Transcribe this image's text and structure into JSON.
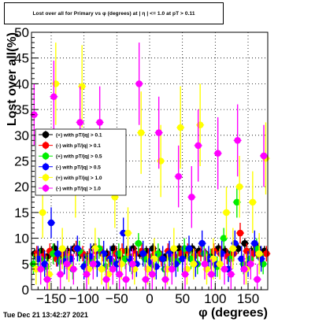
{
  "title": "Lost over all for Primary vs φ (degrees) at | η | <= 1.0 at pT > 0.11",
  "timestamp": "Tue Dec 21 13:42:27 2021",
  "chart_data": {
    "type": "scatter",
    "title": "Lost over all for Primary vs φ (degrees) at | η | <= 1.0 at pT > 0.11",
    "xlabel": "φ (degrees)",
    "ylabel": "Lost over all(%)",
    "xlim": [
      -180,
      180
    ],
    "ylim": [
      0,
      50
    ],
    "xticks": [
      -150,
      -100,
      -50,
      0,
      50,
      100,
      150
    ],
    "xtick_labels": [
      "−150",
      "−100",
      "−50",
      "0",
      "50",
      "100",
      "150"
    ],
    "yticks": [
      0,
      5,
      10,
      15,
      20,
      25,
      30,
      35,
      40,
      45,
      50
    ],
    "ytick_labels": [
      "0",
      "5",
      "10",
      "15",
      "20",
      "25",
      "30",
      "35",
      "40",
      "45",
      "50"
    ],
    "grid": true,
    "legend_position": "left-middle",
    "series": [
      {
        "name": "(+) with pT/|q| > 0.1",
        "color": "#000000",
        "x": [
          -175,
          -165,
          -155,
          -145,
          -135,
          -125,
          -115,
          -105,
          -95,
          -85,
          -75,
          -65,
          -55,
          -45,
          -35,
          -25,
          -15,
          -5,
          5,
          15,
          25,
          35,
          45,
          55,
          65,
          75,
          85,
          95,
          105,
          115,
          125,
          135,
          145,
          155,
          165,
          175
        ],
        "y": [
          7,
          7.5,
          6.5,
          8,
          7,
          7.5,
          8,
          7,
          6.5,
          8,
          7.5,
          7,
          8,
          6.5,
          7.5,
          8,
          7,
          7.5,
          8,
          7,
          6.5,
          7.5,
          8,
          7,
          8,
          7.5,
          7,
          6.5,
          8,
          7.5,
          7,
          8,
          9,
          7.5,
          8,
          7.5
        ],
        "err": [
          1,
          1,
          1,
          1,
          1,
          1,
          1,
          1,
          1,
          1,
          1,
          1,
          1,
          1,
          1,
          1,
          1,
          1,
          1,
          1,
          1,
          1,
          1,
          1,
          1,
          1,
          1,
          1,
          1,
          1,
          1,
          1,
          1,
          1,
          1,
          1
        ]
      },
      {
        "name": "(-) with pT/|q| > 0.1",
        "color": "#ff0000",
        "x": [
          -172,
          -162,
          -152,
          -142,
          -132,
          -122,
          -112,
          -102,
          -92,
          -82,
          -72,
          -62,
          -52,
          -42,
          -32,
          -22,
          -12,
          -2,
          8,
          18,
          28,
          38,
          48,
          58,
          68,
          78,
          88,
          98,
          108,
          118,
          128,
          138,
          148,
          158,
          168,
          178
        ],
        "y": [
          7,
          6.5,
          7.5,
          6,
          7,
          6.5,
          8,
          7,
          6.5,
          7.5,
          7,
          6,
          7,
          7.5,
          6.5,
          7,
          7.5,
          6.5,
          7,
          6,
          7.5,
          6.5,
          7,
          7.5,
          6.5,
          7,
          6,
          7.5,
          7,
          6.5,
          7,
          11,
          7.5,
          7,
          6.5,
          7
        ],
        "err": [
          1.5,
          1.5,
          1.5,
          1.5,
          1.5,
          1.5,
          1.5,
          1.5,
          1.5,
          1.5,
          1.5,
          1.5,
          1.5,
          1.5,
          1.5,
          1.5,
          1.5,
          1.5,
          1.5,
          1.5,
          1.5,
          1.5,
          1.5,
          1.5,
          1.5,
          1.5,
          1.5,
          1.5,
          1.5,
          1.5,
          1.5,
          2,
          1.5,
          1.5,
          1.5,
          1.5
        ]
      },
      {
        "name": "(+) with pT/|q| > 0.5",
        "color": "#00ee00",
        "x": [
          -177,
          -167,
          -157,
          -147,
          -137,
          -127,
          -117,
          -107,
          -97,
          -87,
          -77,
          -67,
          -57,
          -47,
          -37,
          -27,
          -17,
          -7,
          3,
          13,
          23,
          33,
          43,
          53,
          63,
          73,
          83,
          93,
          103,
          113,
          123,
          133,
          143,
          153,
          163,
          173
        ],
        "y": [
          5,
          6,
          4.5,
          7,
          5.5,
          6,
          4,
          7.5,
          5,
          6,
          8,
          4.5,
          5.5,
          7,
          6,
          5,
          9,
          6,
          5,
          7,
          4,
          6,
          5.5,
          8,
          6,
          5,
          7,
          6,
          4.5,
          10,
          6,
          17,
          5,
          6,
          8,
          5
        ],
        "err": [
          2,
          2,
          2,
          2,
          2,
          2,
          2,
          2,
          2,
          2,
          2,
          2,
          2,
          2,
          2,
          2,
          2,
          2,
          2,
          2,
          2,
          2,
          2,
          2,
          2,
          2,
          2,
          2,
          2,
          2,
          2,
          3,
          2,
          2,
          2,
          2
        ]
      },
      {
        "name": "(-) with pT/|q| > 0.5",
        "color": "#0000ff",
        "x": [
          -170,
          -160,
          -150,
          -140,
          -130,
          -120,
          -110,
          -100,
          -90,
          -80,
          -70,
          -60,
          -50,
          -40,
          -30,
          -20,
          -10,
          0,
          10,
          20,
          30,
          40,
          50,
          60,
          70,
          80,
          90,
          100,
          110,
          120,
          130,
          140,
          150,
          160,
          170
        ],
        "y": [
          6,
          5,
          13,
          7,
          5.5,
          6,
          8,
          4.5,
          6.5,
          5,
          7,
          6,
          5,
          11,
          6,
          5,
          7,
          5.5,
          4.5,
          6,
          7,
          5,
          6,
          8,
          5,
          9,
          6,
          5,
          7,
          4,
          9,
          6,
          5,
          9,
          6
        ],
        "err": [
          2.5,
          2.5,
          3,
          2.5,
          2.5,
          2.5,
          2.5,
          2.5,
          2.5,
          2.5,
          2.5,
          2.5,
          2.5,
          3,
          2.5,
          2.5,
          2.5,
          2.5,
          2.5,
          2.5,
          2.5,
          2.5,
          2.5,
          2.5,
          2.5,
          2.5,
          2.5,
          2.5,
          2.5,
          2.5,
          2.5,
          2.5,
          2.5,
          2.5,
          2.5
        ]
      },
      {
        "name": "(+) with pT/|q| > 1.0",
        "color": "#ffff00",
        "x": [
          -173,
          -163,
          -153,
          -143,
          -133,
          -123,
          -113,
          -103,
          -93,
          -83,
          -73,
          -63,
          -53,
          -43,
          -33,
          -23,
          -13,
          -3,
          7,
          17,
          27,
          37,
          47,
          57,
          67,
          77,
          87,
          97,
          107,
          117,
          127,
          137,
          147,
          157,
          167,
          177
        ],
        "y": [
          4,
          15,
          3,
          40,
          8,
          4.5,
          20,
          39.5,
          4,
          8,
          4,
          3,
          18,
          5,
          11,
          4,
          30.5,
          4,
          6,
          25,
          4,
          8,
          31.5,
          4,
          5,
          32,
          4,
          6,
          5,
          15,
          8,
          20,
          4,
          17,
          7,
          25.5
        ],
        "err": [
          3,
          5,
          3,
          8,
          4,
          3,
          6,
          8,
          3,
          4,
          3,
          3,
          6,
          3,
          5,
          3,
          8,
          3,
          4,
          7,
          3,
          4,
          8,
          3,
          3,
          8,
          3,
          4,
          3,
          5,
          4,
          6,
          3,
          6,
          4,
          7
        ]
      },
      {
        "name": "(-) with pT/|q| > 1.0",
        "color": "#ff00ff",
        "x": [
          -176,
          -166,
          -156,
          -146,
          -136,
          -126,
          -116,
          -106,
          -96,
          -86,
          -76,
          -66,
          -56,
          -46,
          -36,
          -26,
          -16,
          -6,
          4,
          14,
          24,
          34,
          44,
          54,
          64,
          74,
          84,
          94,
          104,
          114,
          124,
          134,
          144,
          154,
          164,
          174
        ],
        "y": [
          34,
          4,
          2,
          37.5,
          3,
          5,
          4,
          32.5,
          3,
          5,
          32.5,
          2,
          4,
          3,
          2,
          5,
          40,
          2,
          3,
          30.5,
          2,
          4,
          22,
          3,
          18,
          28,
          5,
          3,
          26.5,
          4,
          3,
          29,
          4,
          5,
          2,
          26
        ],
        "err": [
          6,
          3,
          3,
          7,
          3,
          3,
          3,
          7,
          3,
          3,
          7,
          3,
          3,
          3,
          3,
          3,
          8,
          3,
          3,
          7,
          3,
          3,
          6,
          3,
          6,
          7,
          3,
          3,
          7,
          3,
          3,
          7,
          3,
          3,
          3,
          6
        ]
      }
    ]
  }
}
